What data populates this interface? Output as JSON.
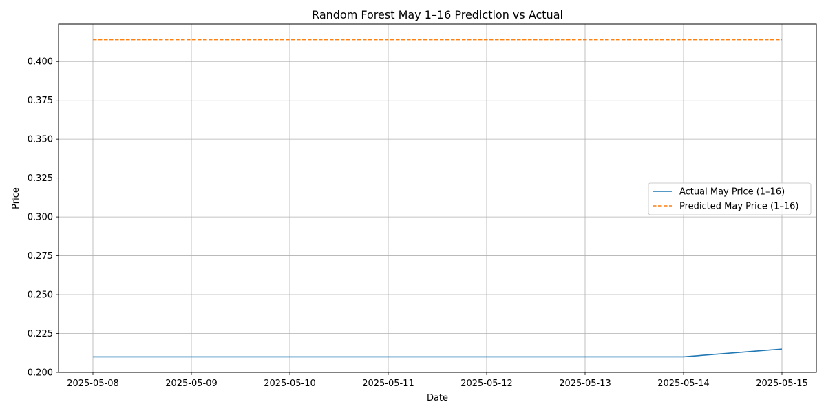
{
  "chart_data": {
    "type": "line",
    "title": "Random Forest May 1–16 Prediction vs Actual",
    "xlabel": "Date",
    "ylabel": "Price",
    "x": [
      "2025-05-08",
      "2025-05-09",
      "2025-05-10",
      "2025-05-11",
      "2025-05-12",
      "2025-05-13",
      "2025-05-14",
      "2025-05-15"
    ],
    "series": [
      {
        "name": "Actual May Price (1–16)",
        "values": [
          0.21,
          0.21,
          0.21,
          0.21,
          0.21,
          0.21,
          0.21,
          0.215
        ],
        "color": "#1f77b4",
        "style": "solid"
      },
      {
        "name": "Predicted May Price (1–16)",
        "values": [
          0.414,
          0.414,
          0.414,
          0.414,
          0.414,
          0.414,
          0.414,
          0.414
        ],
        "color": "#ff7f0e",
        "style": "dashed"
      }
    ],
    "xticks": [
      "2025-05-08",
      "2025-05-09",
      "2025-05-10",
      "2025-05-11",
      "2025-05-12",
      "2025-05-13",
      "2025-05-14",
      "2025-05-15"
    ],
    "yticks": [
      "0.200",
      "0.225",
      "0.250",
      "0.275",
      "0.300",
      "0.325",
      "0.350",
      "0.375",
      "0.400"
    ],
    "ylim": [
      0.2,
      0.424
    ],
    "grid": true,
    "legend_position": "center-right"
  }
}
